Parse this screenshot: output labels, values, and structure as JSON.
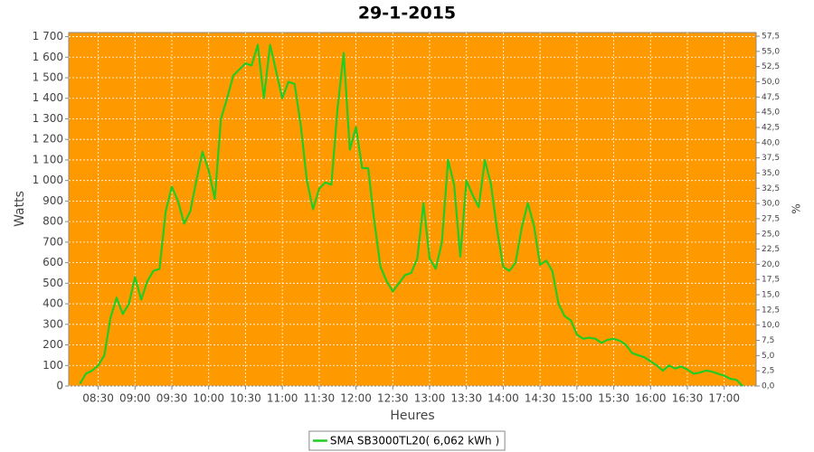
{
  "chart_data": {
    "type": "line",
    "title": "29-1-2015",
    "xlabel": "Heures",
    "ylabel": "Watts",
    "y2label": "%",
    "x": [
      "08:15",
      "08:20",
      "08:25",
      "08:30",
      "08:35",
      "08:40",
      "08:45",
      "08:50",
      "08:55",
      "09:00",
      "09:05",
      "09:10",
      "09:15",
      "09:20",
      "09:25",
      "09:30",
      "09:35",
      "09:40",
      "09:45",
      "09:50",
      "09:55",
      "10:00",
      "10:05",
      "10:10",
      "10:15",
      "10:20",
      "10:25",
      "10:30",
      "10:35",
      "10:40",
      "10:45",
      "10:50",
      "10:55",
      "11:00",
      "11:05",
      "11:10",
      "11:15",
      "11:20",
      "11:25",
      "11:30",
      "11:35",
      "11:40",
      "11:45",
      "11:50",
      "11:55",
      "12:00",
      "12:05",
      "12:10",
      "12:15",
      "12:20",
      "12:25",
      "12:30",
      "12:35",
      "12:40",
      "12:45",
      "12:50",
      "12:55",
      "13:00",
      "13:05",
      "13:10",
      "13:15",
      "13:20",
      "13:25",
      "13:30",
      "13:35",
      "13:40",
      "13:45",
      "13:50",
      "13:55",
      "14:00",
      "14:05",
      "14:10",
      "14:15",
      "14:20",
      "14:25",
      "14:30",
      "14:35",
      "14:40",
      "14:45",
      "14:50",
      "14:55",
      "15:00",
      "15:05",
      "15:10",
      "15:15",
      "15:20",
      "15:25",
      "15:30",
      "15:35",
      "15:40",
      "15:45",
      "15:50",
      "15:55",
      "16:00",
      "16:05",
      "16:10",
      "16:15",
      "16:20",
      "16:25",
      "16:30",
      "16:35",
      "16:40",
      "16:45",
      "16:50",
      "16:55",
      "17:00",
      "17:05",
      "17:10",
      "17:15"
    ],
    "series": [
      {
        "name": "SMA SB3000TL20( 6,062 kWh )",
        "color": "#22cc22",
        "values": [
          10,
          60,
          75,
          100,
          150,
          330,
          430,
          350,
          400,
          530,
          420,
          510,
          560,
          570,
          850,
          970,
          900,
          790,
          850,
          1000,
          1140,
          1050,
          910,
          1300,
          1400,
          1510,
          1540,
          1570,
          1560,
          1660,
          1400,
          1660,
          1530,
          1400,
          1480,
          1470,
          1270,
          1000,
          860,
          960,
          990,
          980,
          1350,
          1620,
          1150,
          1260,
          1060,
          1060,
          800,
          580,
          510,
          460,
          500,
          540,
          550,
          620,
          890,
          620,
          570,
          700,
          1100,
          980,
          630,
          1000,
          930,
          870,
          1100,
          980,
          760,
          580,
          560,
          600,
          770,
          890,
          780,
          590,
          610,
          560,
          400,
          340,
          320,
          250,
          230,
          235,
          230,
          210,
          225,
          230,
          220,
          200,
          160,
          150,
          140,
          120,
          100,
          75,
          100,
          85,
          95,
          80,
          60,
          65,
          75,
          70,
          60,
          50,
          35,
          30,
          0
        ]
      }
    ],
    "xlim": [
      "08:06",
      "17:26"
    ],
    "xticks": [
      "08:30",
      "09:00",
      "09:30",
      "10:00",
      "10:30",
      "11:00",
      "11:30",
      "12:00",
      "12:30",
      "13:00",
      "13:30",
      "14:00",
      "14:30",
      "15:00",
      "15:30",
      "16:00",
      "16:30",
      "17:00"
    ],
    "ylim": [
      0,
      1720
    ],
    "yticks": [
      0,
      100,
      200,
      300,
      400,
      500,
      600,
      700,
      800,
      900,
      {
        "value": 1000,
        "label": "1 000"
      },
      {
        "value": 1100,
        "label": "1 100"
      },
      {
        "value": 1200,
        "label": "1 200"
      },
      {
        "value": 1300,
        "label": "1 300"
      },
      {
        "value": 1400,
        "label": "1 400"
      },
      {
        "value": 1500,
        "label": "1 500"
      },
      {
        "value": 1600,
        "label": "1 600"
      },
      {
        "value": 1700,
        "label": "1 700"
      }
    ],
    "y2lim": [
      0,
      58.1
    ],
    "y2ticks": [
      {
        "value": 0,
        "label": "0,0"
      },
      {
        "value": 2.5,
        "label": "2,5"
      },
      {
        "value": 5,
        "label": "5,0"
      },
      {
        "value": 7.5,
        "label": "7,5"
      },
      {
        "value": 10,
        "label": "10,0"
      },
      {
        "value": 12.5,
        "label": "12,5"
      },
      {
        "value": 15,
        "label": "15,0"
      },
      {
        "value": 17.5,
        "label": "17,5"
      },
      {
        "value": 20,
        "label": "20,0"
      },
      {
        "value": 22.5,
        "label": "22,5"
      },
      {
        "value": 25,
        "label": "25,0"
      },
      {
        "value": 27.5,
        "label": "27,5"
      },
      {
        "value": 30,
        "label": "30,0"
      },
      {
        "value": 32.5,
        "label": "32,5"
      },
      {
        "value": 35,
        "label": "35,0"
      },
      {
        "value": 37.5,
        "label": "37,5"
      },
      {
        "value": 40,
        "label": "40,0"
      },
      {
        "value": 42.5,
        "label": "42,5"
      },
      {
        "value": 45,
        "label": "45,0"
      },
      {
        "value": 47.5,
        "label": "47,5"
      },
      {
        "value": 50,
        "label": "50,0"
      },
      {
        "value": 52.5,
        "label": "52,5"
      },
      {
        "value": 55,
        "label": "55,0"
      },
      {
        "value": 57.5,
        "label": "57,5"
      }
    ],
    "grid": true,
    "plot_color": "#ff9900",
    "legend": "bottom"
  }
}
